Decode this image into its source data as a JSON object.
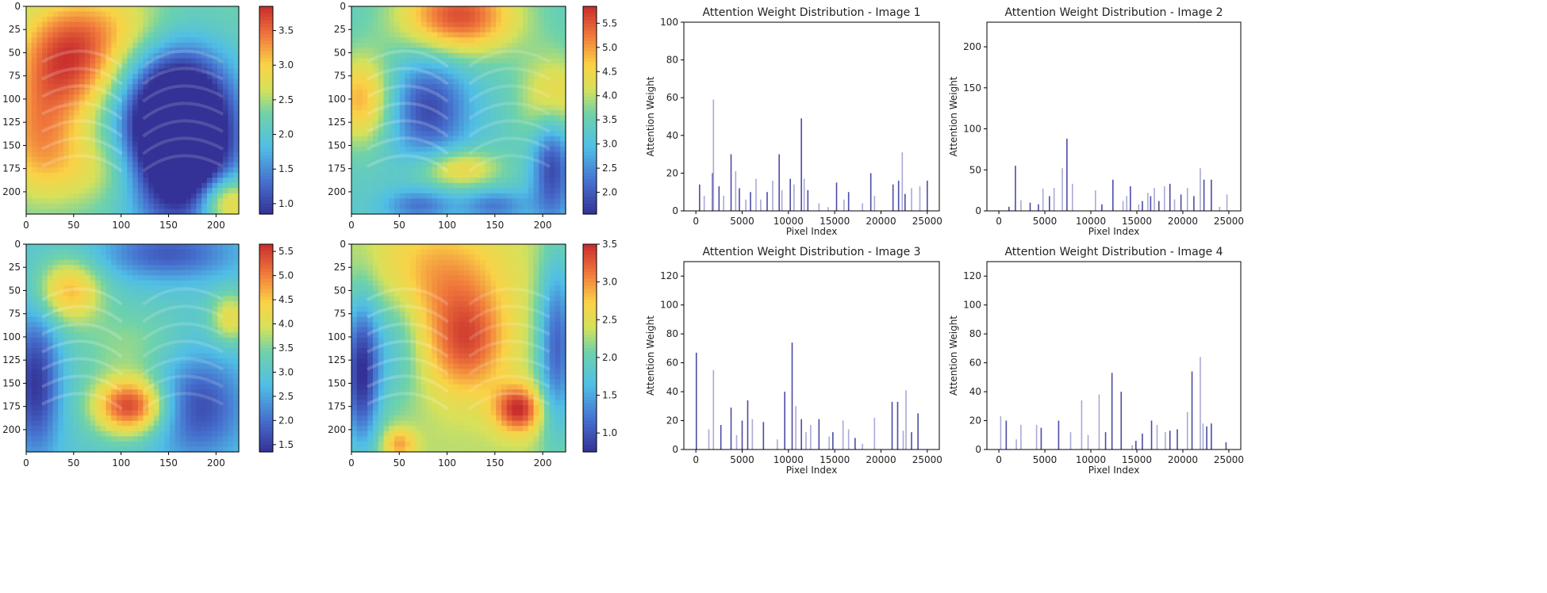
{
  "colors": {
    "bar": "#4b4ba6",
    "bar_light": "#a9a9d6",
    "axis": "#000000",
    "text": "#222222"
  },
  "colormap": "jet",
  "chart_data": [
    {
      "type": "heatmap",
      "xticks": [
        0,
        50,
        100,
        150,
        200
      ],
      "yticks": [
        0,
        25,
        50,
        75,
        100,
        125,
        150,
        175,
        200
      ],
      "xlim": [
        0,
        224
      ],
      "ylim": [
        0,
        224
      ],
      "colorbar": {
        "min": 0.85,
        "max": 3.85,
        "ticks": [
          "1.0",
          "1.5",
          "2.0",
          "2.5",
          "3.0",
          "3.5"
        ],
        "tick_values": [
          1.0,
          1.5,
          2.0,
          2.5,
          3.0,
          3.5
        ]
      },
      "hotspots": [
        {
          "x": 45,
          "y": 55,
          "sx": 40,
          "sy": 45,
          "v": 3.7
        },
        {
          "x": 12,
          "y": 140,
          "sx": 30,
          "sy": 45,
          "v": 3.1
        },
        {
          "x": 110,
          "y": 20,
          "sx": 40,
          "sy": 30,
          "v": 2.7
        },
        {
          "x": 85,
          "y": 175,
          "sx": 50,
          "sy": 30,
          "v": 2.8
        },
        {
          "x": 210,
          "y": 210,
          "sx": 20,
          "sy": 20,
          "v": 3.4
        },
        {
          "x": 200,
          "y": 20,
          "sx": 30,
          "sy": 30,
          "v": 2.3
        },
        {
          "x": 160,
          "y": 140,
          "sx": 40,
          "sy": 60,
          "v": -0.9
        }
      ],
      "base": 2.2
    },
    {
      "type": "heatmap",
      "xticks": [
        0,
        50,
        100,
        150,
        200
      ],
      "yticks": [
        0,
        25,
        50,
        75,
        100,
        125,
        150,
        175,
        200
      ],
      "xlim": [
        0,
        224
      ],
      "ylim": [
        0,
        224
      ],
      "colorbar": {
        "min": 1.55,
        "max": 5.85,
        "ticks": [
          "2.0",
          "2.5",
          "3.0",
          "3.5",
          "4.0",
          "4.5",
          "5.0",
          "5.5"
        ],
        "tick_values": [
          2.0,
          2.5,
          3.0,
          3.5,
          4.0,
          4.5,
          5.0,
          5.5
        ]
      },
      "hotspots": [
        {
          "x": 112,
          "y": 10,
          "sx": 45,
          "sy": 30,
          "v": 5.6
        },
        {
          "x": 10,
          "y": 100,
          "sx": 25,
          "sy": 35,
          "v": 4.9
        },
        {
          "x": 212,
          "y": 100,
          "sx": 25,
          "sy": 35,
          "v": 4.7
        },
        {
          "x": 112,
          "y": 175,
          "sx": 30,
          "sy": 15,
          "v": 4.6
        },
        {
          "x": 80,
          "y": 110,
          "sx": 30,
          "sy": 40,
          "v": 1.8
        },
        {
          "x": 210,
          "y": 170,
          "sx": 15,
          "sy": 45,
          "v": 1.7
        },
        {
          "x": 70,
          "y": 215,
          "sx": 25,
          "sy": 12,
          "v": 2.3
        },
        {
          "x": 150,
          "y": 215,
          "sx": 25,
          "sy": 12,
          "v": 2.3
        }
      ],
      "base": 3.3
    },
    {
      "type": "heatmap",
      "xticks": [
        0,
        50,
        100,
        150,
        200
      ],
      "yticks": [
        0,
        25,
        50,
        75,
        100,
        125,
        150,
        175,
        200
      ],
      "xlim": [
        0,
        224
      ],
      "ylim": [
        0,
        224
      ],
      "colorbar": {
        "min": 1.35,
        "max": 5.65,
        "ticks": [
          "1.5",
          "2.0",
          "2.5",
          "3.0",
          "3.5",
          "4.0",
          "4.5",
          "5.0",
          "5.5"
        ],
        "tick_values": [
          1.5,
          2.0,
          2.5,
          3.0,
          3.5,
          4.0,
          4.5,
          5.0,
          5.5
        ]
      },
      "hotspots": [
        {
          "x": 110,
          "y": 175,
          "sx": 28,
          "sy": 22,
          "v": 5.5
        },
        {
          "x": 45,
          "y": 50,
          "sx": 25,
          "sy": 25,
          "v": 4.6
        },
        {
          "x": 215,
          "y": 80,
          "sx": 15,
          "sy": 20,
          "v": 4.2
        },
        {
          "x": 10,
          "y": 150,
          "sx": 18,
          "sy": 55,
          "v": 1.4
        },
        {
          "x": 150,
          "y": 10,
          "sx": 50,
          "sy": 20,
          "v": 1.8
        },
        {
          "x": 180,
          "y": 175,
          "sx": 35,
          "sy": 40,
          "v": 1.6
        },
        {
          "x": 110,
          "y": 110,
          "sx": 40,
          "sy": 30,
          "v": 3.6
        }
      ],
      "base": 3.0
    },
    {
      "type": "heatmap",
      "xticks": [
        0,
        50,
        100,
        150,
        200
      ],
      "yticks": [
        0,
        25,
        50,
        75,
        100,
        125,
        150,
        175,
        200
      ],
      "xlim": [
        0,
        224
      ],
      "ylim": [
        0,
        224
      ],
      "colorbar": {
        "min": 0.75,
        "max": 3.5,
        "ticks": [
          "1.0",
          "1.5",
          "2.0",
          "2.5",
          "3.0",
          "3.5"
        ],
        "tick_values": [
          1.0,
          1.5,
          2.0,
          2.5,
          3.0,
          3.5
        ]
      },
      "hotspots": [
        {
          "x": 120,
          "y": 105,
          "sx": 30,
          "sy": 40,
          "v": 3.3
        },
        {
          "x": 175,
          "y": 178,
          "sx": 18,
          "sy": 18,
          "v": 3.5
        },
        {
          "x": 90,
          "y": 30,
          "sx": 50,
          "sy": 40,
          "v": 2.9
        },
        {
          "x": 50,
          "y": 215,
          "sx": 12,
          "sy": 12,
          "v": 3.0
        },
        {
          "x": 10,
          "y": 140,
          "sx": 14,
          "sy": 60,
          "v": 0.8
        },
        {
          "x": 215,
          "y": 110,
          "sx": 14,
          "sy": 70,
          "v": 1.1
        },
        {
          "x": 45,
          "y": 110,
          "sx": 20,
          "sy": 50,
          "v": 1.8
        }
      ],
      "base": 2.3
    },
    {
      "type": "bar",
      "title": "Attention Weight Distribution - Image 1",
      "xlabel": "Pixel Index",
      "ylabel": "Attention Weight",
      "xlim": [
        -1300,
        26300
      ],
      "ylim": [
        0,
        100
      ],
      "xticks": [
        0,
        5000,
        10000,
        15000,
        20000,
        25000
      ],
      "yticks": [
        0,
        20,
        40,
        60,
        80,
        100
      ],
      "x": [
        400,
        900,
        1800,
        1900,
        2500,
        3000,
        3800,
        4300,
        4700,
        5400,
        5900,
        6500,
        7000,
        7700,
        8300,
        9000,
        9300,
        10200,
        10600,
        11400,
        11700,
        12100,
        13300,
        14300,
        15200,
        16000,
        16500,
        18000,
        18900,
        19300,
        21300,
        21900,
        22300,
        22600,
        23300,
        24200,
        25000
      ],
      "values": [
        14,
        8,
        20,
        59,
        13,
        8,
        30,
        21,
        12,
        6,
        10,
        17,
        6,
        10,
        16,
        30,
        11,
        17,
        14,
        49,
        17,
        11,
        4,
        2,
        15,
        6,
        10,
        4,
        20,
        8,
        14,
        16,
        31,
        9,
        12,
        13,
        16
      ],
      "shade": [
        0,
        1,
        0,
        1,
        0,
        1,
        0,
        1,
        0,
        1,
        0,
        1,
        1,
        0,
        1,
        0,
        1,
        0,
        1,
        0,
        1,
        0,
        1,
        1,
        0,
        1,
        0,
        1,
        0,
        1,
        0,
        0,
        1,
        0,
        1,
        1,
        0
      ]
    },
    {
      "type": "bar",
      "title": "Attention Weight Distribution - Image 2",
      "xlabel": "Pixel Index",
      "ylabel": "Attention Weight",
      "xlim": [
        -1300,
        26300
      ],
      "ylim": [
        0,
        230
      ],
      "xticks": [
        0,
        5000,
        10000,
        15000,
        20000,
        25000
      ],
      "yticks": [
        0,
        50,
        100,
        150,
        200
      ],
      "x": [
        1100,
        1800,
        2400,
        3400,
        4300,
        4800,
        5500,
        6000,
        6900,
        7400,
        8000,
        10500,
        11200,
        12400,
        13500,
        13900,
        14300,
        15200,
        15600,
        16200,
        16500,
        16900,
        17400,
        18000,
        18600,
        19100,
        19800,
        20500,
        21200,
        21900,
        22300,
        23100,
        24000,
        24800
      ],
      "values": [
        5,
        55,
        13,
        10,
        8,
        27,
        18,
        28,
        52,
        88,
        33,
        25,
        8,
        38,
        12,
        18,
        30,
        8,
        12,
        22,
        18,
        28,
        12,
        30,
        33,
        14,
        20,
        28,
        18,
        52,
        38,
        38,
        5,
        20
      ],
      "shade": [
        0,
        0,
        1,
        0,
        0,
        1,
        0,
        1,
        1,
        0,
        1,
        1,
        0,
        0,
        1,
        1,
        0,
        1,
        0,
        1,
        0,
        1,
        0,
        1,
        0,
        1,
        0,
        1,
        0,
        1,
        0,
        0,
        1,
        1
      ]
    },
    {
      "type": "bar",
      "title": "Attention Weight Distribution - Image 3",
      "xlabel": "Pixel Index",
      "ylabel": "Attention Weight",
      "xlim": [
        -1300,
        26300
      ],
      "ylim": [
        0,
        130
      ],
      "xticks": [
        0,
        5000,
        10000,
        15000,
        20000,
        25000
      ],
      "yticks": [
        0,
        20,
        40,
        60,
        80,
        100,
        120
      ],
      "x": [
        50,
        1400,
        1900,
        2700,
        3800,
        4400,
        5000,
        5600,
        6100,
        7300,
        8800,
        9600,
        10400,
        10800,
        11400,
        11900,
        12400,
        13300,
        14400,
        14800,
        15900,
        16500,
        17200,
        18000,
        19300,
        21200,
        21800,
        22400,
        22700,
        23300,
        24000
      ],
      "values": [
        67,
        14,
        55,
        17,
        29,
        10,
        20,
        34,
        21,
        19,
        7,
        40,
        74,
        30,
        21,
        12,
        17,
        21,
        9,
        12,
        20,
        14,
        8,
        4,
        22,
        33,
        33,
        13,
        41,
        12,
        25
      ],
      "shade": [
        0,
        1,
        1,
        0,
        0,
        1,
        0,
        0,
        1,
        0,
        1,
        0,
        0,
        1,
        0,
        1,
        1,
        0,
        1,
        0,
        1,
        1,
        0,
        1,
        1,
        0,
        0,
        1,
        1,
        0,
        0
      ]
    },
    {
      "type": "bar",
      "title": "Attention Weight Distribution - Image 4",
      "xlabel": "Pixel Index",
      "ylabel": "Attention Weight",
      "xlim": [
        -1300,
        26300
      ],
      "ylim": [
        0,
        130
      ],
      "xticks": [
        0,
        5000,
        10000,
        15000,
        20000,
        25000
      ],
      "yticks": [
        0,
        20,
        40,
        60,
        80,
        100,
        120
      ],
      "x": [
        200,
        800,
        1900,
        2400,
        4100,
        4600,
        6500,
        7800,
        9000,
        9700,
        10900,
        11600,
        12300,
        13300,
        14500,
        14900,
        15600,
        16600,
        17200,
        18100,
        18600,
        19400,
        20500,
        21000,
        21900,
        22200,
        22600,
        23100,
        24700
      ],
      "values": [
        23,
        20,
        7,
        17,
        17,
        15,
        20,
        12,
        34,
        10,
        38,
        12,
        53,
        40,
        3,
        6,
        11,
        20,
        17,
        12,
        13,
        14,
        26,
        54,
        64,
        18,
        16,
        18,
        5
      ],
      "shade": [
        1,
        0,
        1,
        1,
        1,
        0,
        0,
        1,
        1,
        1,
        1,
        0,
        0,
        0,
        1,
        0,
        0,
        0,
        1,
        1,
        0,
        0,
        1,
        0,
        1,
        1,
        0,
        0,
        0
      ]
    }
  ]
}
